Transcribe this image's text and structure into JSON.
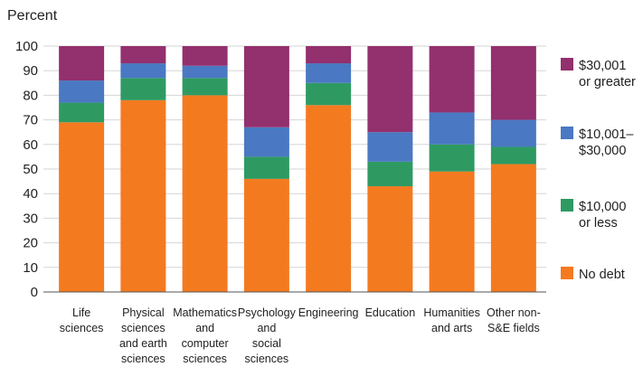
{
  "chart_data": {
    "type": "bar",
    "stacked": true,
    "percent_stacked": true,
    "ylabel": "Percent",
    "ylim": [
      0,
      100
    ],
    "yticks": [
      0,
      10,
      20,
      30,
      40,
      50,
      60,
      70,
      80,
      90,
      100
    ],
    "grid": true,
    "legend_position": "right",
    "categories": [
      [
        "Life",
        "sciences"
      ],
      [
        "Physical",
        "sciences",
        "and earth",
        "sciences"
      ],
      [
        "Mathematics",
        "and",
        "computer",
        "sciences"
      ],
      [
        "Psychology",
        "and",
        "social",
        "sciences"
      ],
      [
        "Engineering"
      ],
      [
        "Education"
      ],
      [
        "Humanities",
        "and arts"
      ],
      [
        "Other non-",
        "S&E fields"
      ]
    ],
    "series": [
      {
        "name": [
          "No debt"
        ],
        "color": "#f47a20",
        "values": [
          69,
          78,
          80,
          46,
          76,
          43,
          49,
          52
        ]
      },
      {
        "name": [
          "$10,000",
          "or less"
        ],
        "color": "#2e9a62",
        "values": [
          8,
          9,
          7,
          9,
          9,
          10,
          11,
          7
        ]
      },
      {
        "name": [
          "$10,001–",
          "$30,000"
        ],
        "color": "#4a78c2",
        "values": [
          9,
          6,
          5,
          12,
          8,
          12,
          13,
          11
        ]
      },
      {
        "name": [
          "$30,001",
          "or greater"
        ],
        "color": "#93306e",
        "values": [
          14,
          7,
          8,
          33,
          7,
          35,
          27,
          30
        ]
      }
    ]
  }
}
